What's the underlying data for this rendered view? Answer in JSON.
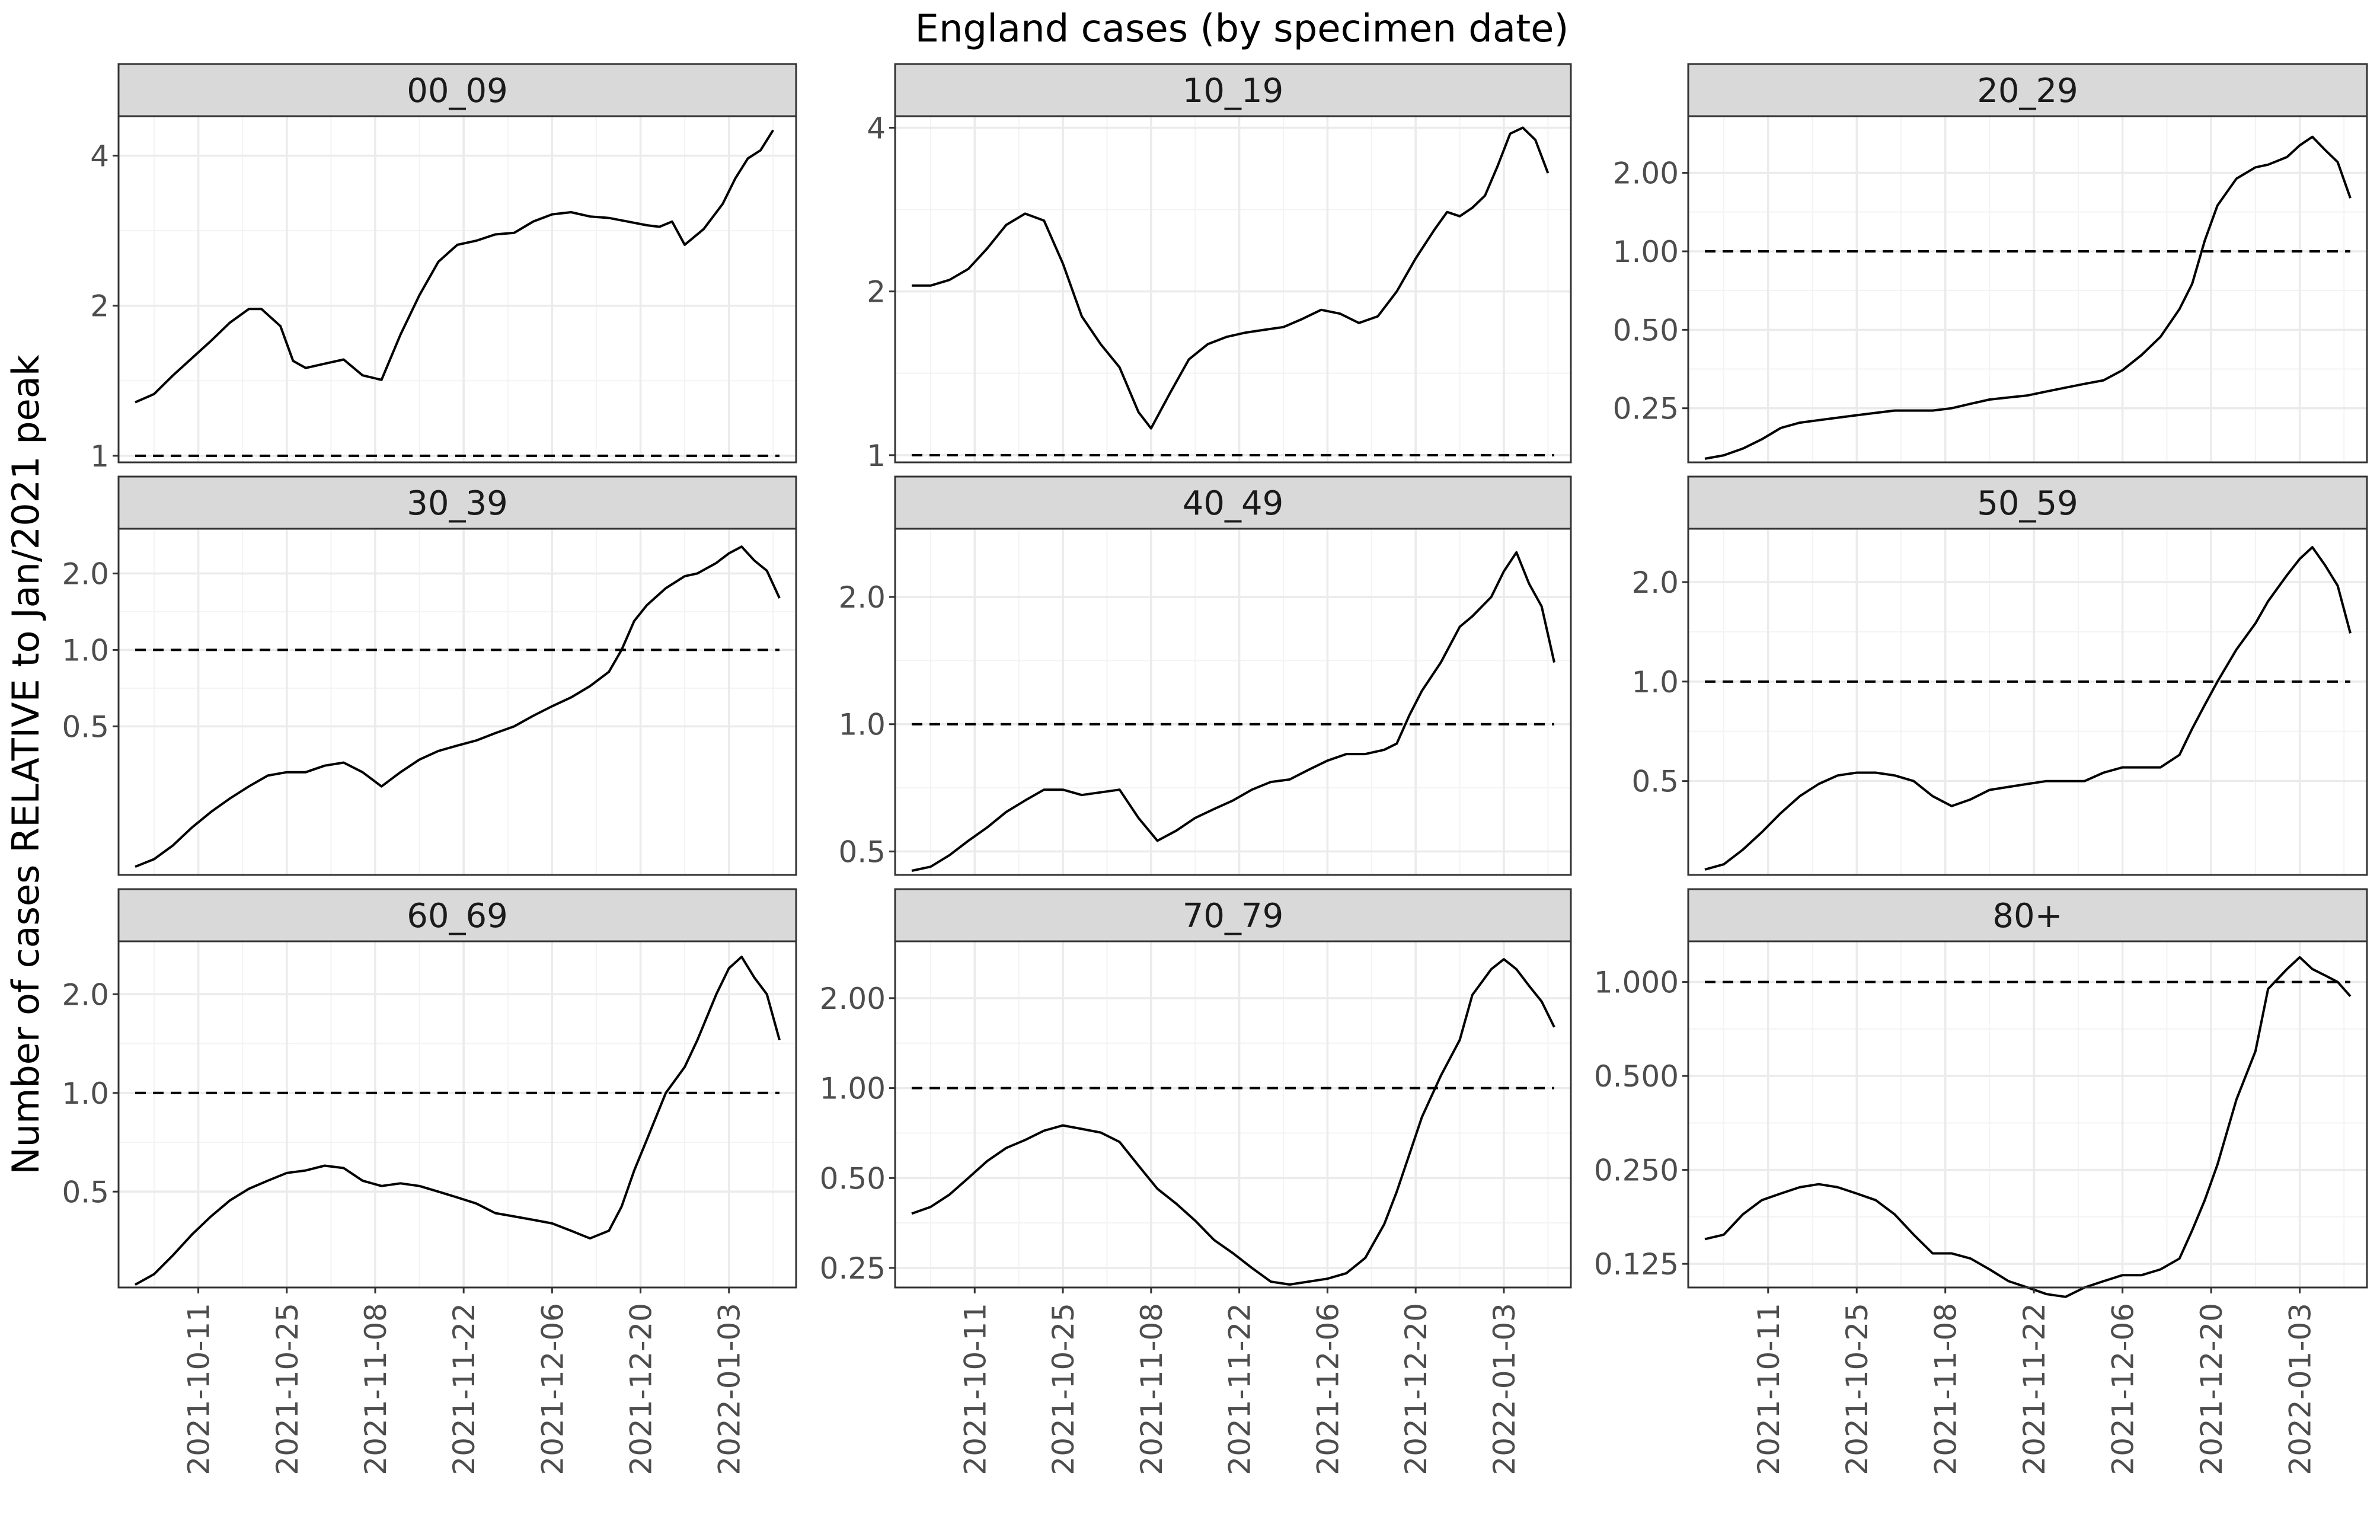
{
  "chart_data": {
    "type": "line",
    "title": "England cases (by specimen date)",
    "ylabel": "Number of cases RELATIVE to Jan/2021 peak",
    "xlabel": "",
    "y_scale": "log2",
    "grid": "on",
    "layout": "3x3 facets",
    "reference_line": {
      "y": 1.0,
      "style": "dashed"
    },
    "x_tick_labels": [
      "2021-10-11",
      "2021-10-25",
      "2021-11-08",
      "2021-11-22",
      "2021-12-06",
      "2021-12-20",
      "2022-01-03"
    ],
    "x_range": [
      "2021-10-01",
      "2022-01-11"
    ],
    "facets": [
      {
        "name": "00_09",
        "ylim": [
          0.97,
          4.8
        ],
        "yticks": [
          1,
          2,
          4
        ],
        "ytick_labels": [
          "1",
          "2",
          "4"
        ],
        "x": [
          "2021-10-01",
          "2021-10-04",
          "2021-10-07",
          "2021-10-10",
          "2021-10-13",
          "2021-10-16",
          "2021-10-19",
          "2021-10-21",
          "2021-10-24",
          "2021-10-26",
          "2021-10-28",
          "2021-10-31",
          "2021-11-03",
          "2021-11-06",
          "2021-11-09",
          "2021-11-12",
          "2021-11-15",
          "2021-11-18",
          "2021-11-21",
          "2021-11-24",
          "2021-11-27",
          "2021-11-30",
          "2021-12-03",
          "2021-12-06",
          "2021-12-09",
          "2021-12-12",
          "2021-12-15",
          "2021-12-18",
          "2021-12-21",
          "2021-12-23",
          "2021-12-25",
          "2021-12-27",
          "2021-12-30",
          "2022-01-02",
          "2022-01-04",
          "2022-01-06",
          "2022-01-08",
          "2022-01-10"
        ],
        "values": [
          1.28,
          1.33,
          1.45,
          1.57,
          1.7,
          1.85,
          1.97,
          1.97,
          1.82,
          1.55,
          1.5,
          1.53,
          1.56,
          1.45,
          1.42,
          1.75,
          2.1,
          2.45,
          2.65,
          2.7,
          2.78,
          2.8,
          2.95,
          3.05,
          3.08,
          3.02,
          3.0,
          2.95,
          2.9,
          2.88,
          2.95,
          2.65,
          2.85,
          3.2,
          3.6,
          3.95,
          4.1,
          4.5
        ]
      },
      {
        "name": "10_19",
        "ylim": [
          0.97,
          4.2
        ],
        "yticks": [
          1,
          2,
          4
        ],
        "ytick_labels": [
          "1",
          "2",
          "4"
        ],
        "x": [
          "2021-10-01",
          "2021-10-04",
          "2021-10-07",
          "2021-10-10",
          "2021-10-13",
          "2021-10-16",
          "2021-10-19",
          "2021-10-22",
          "2021-10-25",
          "2021-10-28",
          "2021-10-31",
          "2021-11-03",
          "2021-11-06",
          "2021-11-08",
          "2021-11-11",
          "2021-11-14",
          "2021-11-17",
          "2021-11-20",
          "2021-11-23",
          "2021-11-26",
          "2021-11-29",
          "2021-12-02",
          "2021-12-05",
          "2021-12-08",
          "2021-12-11",
          "2021-12-14",
          "2021-12-17",
          "2021-12-20",
          "2021-12-23",
          "2021-12-25",
          "2021-12-27",
          "2021-12-29",
          "2021-12-31",
          "2022-01-02",
          "2022-01-04",
          "2022-01-06",
          "2022-01-08",
          "2022-01-10"
        ],
        "values": [
          2.05,
          2.05,
          2.1,
          2.2,
          2.4,
          2.65,
          2.78,
          2.7,
          2.25,
          1.8,
          1.6,
          1.45,
          1.2,
          1.12,
          1.3,
          1.5,
          1.6,
          1.65,
          1.68,
          1.7,
          1.72,
          1.78,
          1.85,
          1.82,
          1.75,
          1.8,
          2.0,
          2.3,
          2.6,
          2.8,
          2.75,
          2.85,
          3.0,
          3.4,
          3.9,
          4.0,
          3.8,
          3.3
        ]
      },
      {
        "name": "20_29",
        "ylim": [
          0.155,
          3.3
        ],
        "yticks": [
          0.25,
          0.5,
          1.0,
          2.0
        ],
        "ytick_labels": [
          "0.25",
          "0.50",
          "1.00",
          "2.00"
        ],
        "x": [
          "2021-10-01",
          "2021-10-04",
          "2021-10-07",
          "2021-10-10",
          "2021-10-13",
          "2021-10-16",
          "2021-10-19",
          "2021-10-22",
          "2021-10-25",
          "2021-10-28",
          "2021-10-31",
          "2021-11-03",
          "2021-11-06",
          "2021-11-09",
          "2021-11-12",
          "2021-11-15",
          "2021-11-18",
          "2021-11-21",
          "2021-11-24",
          "2021-11-27",
          "2021-11-30",
          "2021-12-03",
          "2021-12-06",
          "2021-12-09",
          "2021-12-12",
          "2021-12-15",
          "2021-12-17",
          "2021-12-19",
          "2021-12-21",
          "2021-12-24",
          "2021-12-27",
          "2021-12-29",
          "2022-01-01",
          "2022-01-03",
          "2022-01-05",
          "2022-01-07",
          "2022-01-09",
          "2022-01-11"
        ],
        "values": [
          0.16,
          0.165,
          0.175,
          0.19,
          0.21,
          0.22,
          0.225,
          0.23,
          0.235,
          0.24,
          0.245,
          0.245,
          0.245,
          0.25,
          0.26,
          0.27,
          0.275,
          0.28,
          0.29,
          0.3,
          0.31,
          0.32,
          0.35,
          0.4,
          0.47,
          0.6,
          0.75,
          1.1,
          1.5,
          1.9,
          2.1,
          2.15,
          2.3,
          2.55,
          2.75,
          2.45,
          2.2,
          1.6
        ]
      },
      {
        "name": "30_39",
        "ylim": [
          0.13,
          3.0
        ],
        "yticks": [
          0.5,
          1.0,
          2.0
        ],
        "ytick_labels": [
          "0.5",
          "1.0",
          "2.0"
        ],
        "x": [
          "2021-10-01",
          "2021-10-04",
          "2021-10-07",
          "2021-10-10",
          "2021-10-13",
          "2021-10-16",
          "2021-10-19",
          "2021-10-22",
          "2021-10-25",
          "2021-10-28",
          "2021-10-31",
          "2021-11-03",
          "2021-11-06",
          "2021-11-09",
          "2021-11-12",
          "2021-11-15",
          "2021-11-18",
          "2021-11-21",
          "2021-11-24",
          "2021-11-27",
          "2021-11-30",
          "2021-12-03",
          "2021-12-06",
          "2021-12-09",
          "2021-12-12",
          "2021-12-15",
          "2021-12-17",
          "2021-12-19",
          "2021-12-21",
          "2021-12-24",
          "2021-12-27",
          "2021-12-29",
          "2022-01-01",
          "2022-01-03",
          "2022-01-05",
          "2022-01-07",
          "2022-01-09",
          "2022-01-11"
        ],
        "values": [
          0.14,
          0.15,
          0.17,
          0.2,
          0.23,
          0.26,
          0.29,
          0.32,
          0.33,
          0.33,
          0.35,
          0.36,
          0.33,
          0.29,
          0.33,
          0.37,
          0.4,
          0.42,
          0.44,
          0.47,
          0.5,
          0.55,
          0.6,
          0.65,
          0.72,
          0.82,
          1.0,
          1.3,
          1.5,
          1.75,
          1.95,
          2.0,
          2.2,
          2.4,
          2.55,
          2.25,
          2.05,
          1.6
        ]
      },
      {
        "name": "40_49",
        "ylim": [
          0.44,
          2.9
        ],
        "yticks": [
          0.5,
          1.0,
          2.0
        ],
        "ytick_labels": [
          "0.5",
          "1.0",
          "2.0"
        ],
        "x": [
          "2021-10-01",
          "2021-10-04",
          "2021-10-07",
          "2021-10-10",
          "2021-10-13",
          "2021-10-16",
          "2021-10-19",
          "2021-10-22",
          "2021-10-25",
          "2021-10-28",
          "2021-10-31",
          "2021-11-03",
          "2021-11-06",
          "2021-11-09",
          "2021-11-12",
          "2021-11-15",
          "2021-11-18",
          "2021-11-21",
          "2021-11-24",
          "2021-11-27",
          "2021-11-30",
          "2021-12-03",
          "2021-12-06",
          "2021-12-09",
          "2021-12-12",
          "2021-12-15",
          "2021-12-17",
          "2021-12-19",
          "2021-12-21",
          "2021-12-24",
          "2021-12-27",
          "2021-12-29",
          "2022-01-01",
          "2022-01-03",
          "2022-01-05",
          "2022-01-07",
          "2022-01-09",
          "2022-01-11"
        ],
        "values": [
          0.45,
          0.46,
          0.49,
          0.53,
          0.57,
          0.62,
          0.66,
          0.7,
          0.7,
          0.68,
          0.69,
          0.7,
          0.6,
          0.53,
          0.56,
          0.6,
          0.63,
          0.66,
          0.7,
          0.73,
          0.74,
          0.78,
          0.82,
          0.85,
          0.85,
          0.87,
          0.9,
          1.05,
          1.2,
          1.4,
          1.7,
          1.8,
          2.0,
          2.3,
          2.55,
          2.15,
          1.9,
          1.4
        ]
      },
      {
        "name": "50_59",
        "ylim": [
          0.26,
          2.9
        ],
        "yticks": [
          0.5,
          1.0,
          2.0
        ],
        "ytick_labels": [
          "0.5",
          "1.0",
          "2.0"
        ],
        "x": [
          "2021-10-01",
          "2021-10-04",
          "2021-10-07",
          "2021-10-10",
          "2021-10-13",
          "2021-10-16",
          "2021-10-19",
          "2021-10-22",
          "2021-10-25",
          "2021-10-28",
          "2021-10-31",
          "2021-11-03",
          "2021-11-06",
          "2021-11-09",
          "2021-11-12",
          "2021-11-15",
          "2021-11-18",
          "2021-11-21",
          "2021-11-24",
          "2021-11-27",
          "2021-11-30",
          "2021-12-03",
          "2021-12-06",
          "2021-12-09",
          "2021-12-12",
          "2021-12-15",
          "2021-12-17",
          "2021-12-19",
          "2021-12-21",
          "2021-12-24",
          "2021-12-27",
          "2021-12-29",
          "2022-01-01",
          "2022-01-03",
          "2022-01-05",
          "2022-01-07",
          "2022-01-09",
          "2022-01-11"
        ],
        "values": [
          0.27,
          0.28,
          0.31,
          0.35,
          0.4,
          0.45,
          0.49,
          0.52,
          0.53,
          0.53,
          0.52,
          0.5,
          0.45,
          0.42,
          0.44,
          0.47,
          0.48,
          0.49,
          0.5,
          0.5,
          0.5,
          0.53,
          0.55,
          0.55,
          0.55,
          0.6,
          0.72,
          0.85,
          1.0,
          1.25,
          1.5,
          1.75,
          2.1,
          2.35,
          2.55,
          2.25,
          1.95,
          1.4
        ]
      },
      {
        "name": "60_69",
        "ylim": [
          0.255,
          2.9
        ],
        "yticks": [
          0.5,
          1.0,
          2.0
        ],
        "ytick_labels": [
          "0.5",
          "1.0",
          "2.0"
        ],
        "x": [
          "2021-10-01",
          "2021-10-04",
          "2021-10-07",
          "2021-10-10",
          "2021-10-13",
          "2021-10-16",
          "2021-10-19",
          "2021-10-22",
          "2021-10-25",
          "2021-10-28",
          "2021-10-31",
          "2021-11-03",
          "2021-11-06",
          "2021-11-09",
          "2021-11-12",
          "2021-11-15",
          "2021-11-18",
          "2021-11-21",
          "2021-11-24",
          "2021-11-27",
          "2021-11-30",
          "2021-12-03",
          "2021-12-06",
          "2021-12-09",
          "2021-12-12",
          "2021-12-15",
          "2021-12-17",
          "2021-12-19",
          "2021-12-21",
          "2021-12-24",
          "2021-12-27",
          "2021-12-29",
          "2022-01-01",
          "2022-01-03",
          "2022-01-05",
          "2022-01-07",
          "2022-01-09",
          "2022-01-11"
        ],
        "values": [
          0.26,
          0.28,
          0.32,
          0.37,
          0.42,
          0.47,
          0.51,
          0.54,
          0.57,
          0.58,
          0.6,
          0.59,
          0.54,
          0.52,
          0.53,
          0.52,
          0.5,
          0.48,
          0.46,
          0.43,
          0.42,
          0.41,
          0.4,
          0.38,
          0.36,
          0.38,
          0.45,
          0.58,
          0.72,
          1.0,
          1.2,
          1.45,
          2.0,
          2.4,
          2.6,
          2.25,
          2.0,
          1.45
        ]
      },
      {
        "name": "70_79",
        "ylim": [
          0.215,
          3.1
        ],
        "yticks": [
          0.25,
          0.5,
          1.0,
          2.0
        ],
        "ytick_labels": [
          "0.25",
          "0.50",
          "1.00",
          "2.00"
        ],
        "x": [
          "2021-10-01",
          "2021-10-04",
          "2021-10-07",
          "2021-10-10",
          "2021-10-13",
          "2021-10-16",
          "2021-10-19",
          "2021-10-22",
          "2021-10-25",
          "2021-10-28",
          "2021-10-31",
          "2021-11-03",
          "2021-11-06",
          "2021-11-09",
          "2021-11-12",
          "2021-11-15",
          "2021-11-18",
          "2021-11-21",
          "2021-11-24",
          "2021-11-27",
          "2021-11-30",
          "2021-12-03",
          "2021-12-06",
          "2021-12-09",
          "2021-12-12",
          "2021-12-15",
          "2021-12-17",
          "2021-12-19",
          "2021-12-21",
          "2021-12-24",
          "2021-12-27",
          "2021-12-29",
          "2022-01-01",
          "2022-01-03",
          "2022-01-05",
          "2022-01-07",
          "2022-01-09",
          "2022-01-11"
        ],
        "values": [
          0.38,
          0.4,
          0.44,
          0.5,
          0.57,
          0.63,
          0.67,
          0.72,
          0.75,
          0.73,
          0.71,
          0.66,
          0.55,
          0.46,
          0.41,
          0.36,
          0.31,
          0.28,
          0.25,
          0.225,
          0.22,
          0.225,
          0.23,
          0.24,
          0.27,
          0.35,
          0.45,
          0.6,
          0.8,
          1.1,
          1.45,
          2.05,
          2.5,
          2.7,
          2.5,
          2.2,
          1.95,
          1.6
        ]
      },
      {
        "name": "80+",
        "ylim": [
          0.105,
          1.35
        ],
        "yticks": [
          0.125,
          0.25,
          0.5,
          1.0
        ],
        "ytick_labels": [
          "0.125",
          "0.250",
          "0.500",
          "1.000"
        ],
        "x": [
          "2021-10-01",
          "2021-10-04",
          "2021-10-07",
          "2021-10-10",
          "2021-10-13",
          "2021-10-16",
          "2021-10-19",
          "2021-10-22",
          "2021-10-25",
          "2021-10-28",
          "2021-10-31",
          "2021-11-03",
          "2021-11-06",
          "2021-11-09",
          "2021-11-12",
          "2021-11-15",
          "2021-11-18",
          "2021-11-21",
          "2021-11-24",
          "2021-11-27",
          "2021-11-30",
          "2021-12-03",
          "2021-12-06",
          "2021-12-09",
          "2021-12-12",
          "2021-12-15",
          "2021-12-17",
          "2021-12-19",
          "2021-12-21",
          "2021-12-24",
          "2021-12-27",
          "2021-12-29",
          "2022-01-01",
          "2022-01-03",
          "2022-01-05",
          "2022-01-07",
          "2022-01-09",
          "2022-01-11"
        ],
        "values": [
          0.15,
          0.155,
          0.18,
          0.2,
          0.21,
          0.22,
          0.225,
          0.22,
          0.21,
          0.2,
          0.18,
          0.155,
          0.135,
          0.135,
          0.13,
          0.12,
          0.11,
          0.105,
          0.1,
          0.098,
          0.105,
          0.11,
          0.115,
          0.115,
          0.12,
          0.13,
          0.16,
          0.2,
          0.26,
          0.42,
          0.6,
          0.95,
          1.1,
          1.2,
          1.1,
          1.05,
          1.0,
          0.9
        ]
      }
    ]
  }
}
